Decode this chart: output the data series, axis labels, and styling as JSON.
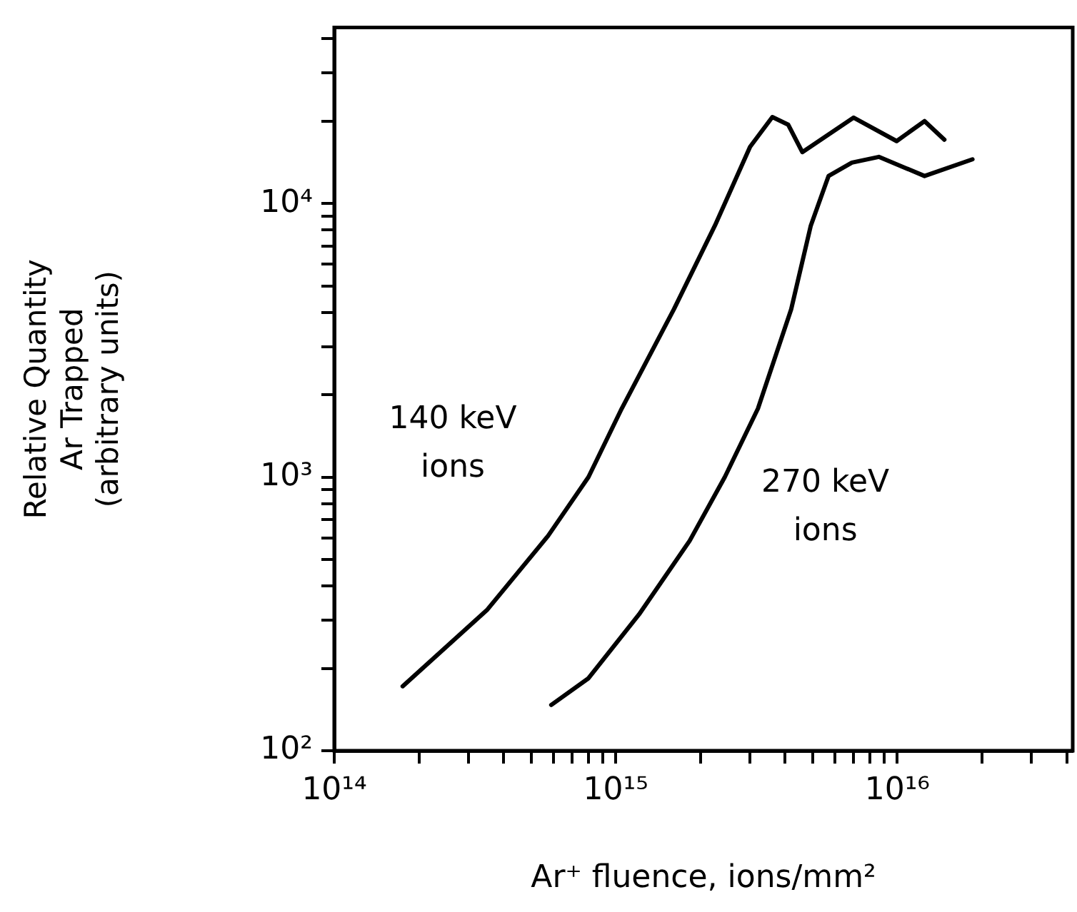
{
  "chart_data": {
    "type": "line",
    "xlabel": "Ar⁺ fluence, ions/mm²",
    "ylabel": "Relative Quantity\nAr Trapped\n(arbitrary units)",
    "log": "xy",
    "xlim": [
      100000000000000.0,
      4.2e+16
    ],
    "ylim": [
      100,
      44000
    ],
    "xticks": [
      {
        "value": 100000000000000.0,
        "label": "10¹⁴"
      },
      {
        "value": 200000000000000.0,
        "label": null
      },
      {
        "value": 300000000000000.0,
        "label": null
      },
      {
        "value": 400000000000000.0,
        "label": null
      },
      {
        "value": 500000000000000.0,
        "label": null
      },
      {
        "value": 600000000000000.0,
        "label": null
      },
      {
        "value": 700000000000000.0,
        "label": null
      },
      {
        "value": 800000000000000.0,
        "label": null
      },
      {
        "value": 900000000000000.0,
        "label": null
      },
      {
        "value": 1000000000000000.0,
        "label": "10¹⁵"
      },
      {
        "value": 2000000000000000.0,
        "label": null
      },
      {
        "value": 3000000000000000.0,
        "label": null
      },
      {
        "value": 4000000000000000.0,
        "label": null
      },
      {
        "value": 5000000000000000.0,
        "label": null
      },
      {
        "value": 6000000000000000.0,
        "label": null
      },
      {
        "value": 7000000000000000.0,
        "label": null
      },
      {
        "value": 8000000000000000.0,
        "label": null
      },
      {
        "value": 9000000000000000.0,
        "label": null
      },
      {
        "value": 1e+16,
        "label": "10¹⁶"
      },
      {
        "value": 2e+16,
        "label": null
      },
      {
        "value": 3e+16,
        "label": null
      },
      {
        "value": 4e+16,
        "label": null
      }
    ],
    "yticks": [
      {
        "value": 100,
        "label": "10²"
      },
      {
        "value": 200,
        "label": null
      },
      {
        "value": 300,
        "label": null
      },
      {
        "value": 400,
        "label": null
      },
      {
        "value": 500,
        "label": null
      },
      {
        "value": 600,
        "label": null
      },
      {
        "value": 700,
        "label": null
      },
      {
        "value": 800,
        "label": null
      },
      {
        "value": 900,
        "label": null
      },
      {
        "value": 1000,
        "label": "10³"
      },
      {
        "value": 2000,
        "label": null
      },
      {
        "value": 3000,
        "label": null
      },
      {
        "value": 4000,
        "label": null
      },
      {
        "value": 5000,
        "label": null
      },
      {
        "value": 6000,
        "label": null
      },
      {
        "value": 7000,
        "label": null
      },
      {
        "value": 8000,
        "label": null
      },
      {
        "value": 9000,
        "label": null
      },
      {
        "value": 10000,
        "label": "10⁴"
      },
      {
        "value": 20000,
        "label": null
      },
      {
        "value": 30000,
        "label": null
      },
      {
        "value": 40000,
        "label": null
      }
    ],
    "grid": false,
    "legend": false,
    "marker": "none",
    "line_style": "solid",
    "series": [
      {
        "name": "140 keV ions",
        "color": "#000000",
        "x": [
          175000000000000.0,
          350000000000000.0,
          575000000000000.0,
          800000000000000.0,
          1050000000000000.0,
          1610000000000000.0,
          2250000000000000.0,
          3000000000000000.0,
          3600000000000000.0,
          4100000000000000.0,
          4600000000000000.0,
          7000000000000000.0,
          9950000000000000.0,
          1.25e+16,
          1.47e+16
        ],
        "values": [
          172,
          328,
          610,
          1000,
          1780,
          4110,
          8300,
          16100,
          20700,
          19400,
          15400,
          20600,
          16900,
          20000,
          17100
        ]
      },
      {
        "name": "270 keV ions",
        "color": "#000000",
        "x": [
          590000000000000.0,
          800000000000000.0,
          1210000000000000.0,
          1830000000000000.0,
          2440000000000000.0,
          3200000000000000.0,
          4200000000000000.0,
          4930000000000000.0,
          5700000000000000.0,
          6900000000000000.0,
          8600000000000000.0,
          1.25e+16,
          1.85e+16
        ],
        "values": [
          147,
          184,
          315,
          585,
          1000,
          1780,
          4110,
          8300,
          12600,
          14100,
          14800,
          12600,
          14500
        ]
      }
    ]
  }
}
